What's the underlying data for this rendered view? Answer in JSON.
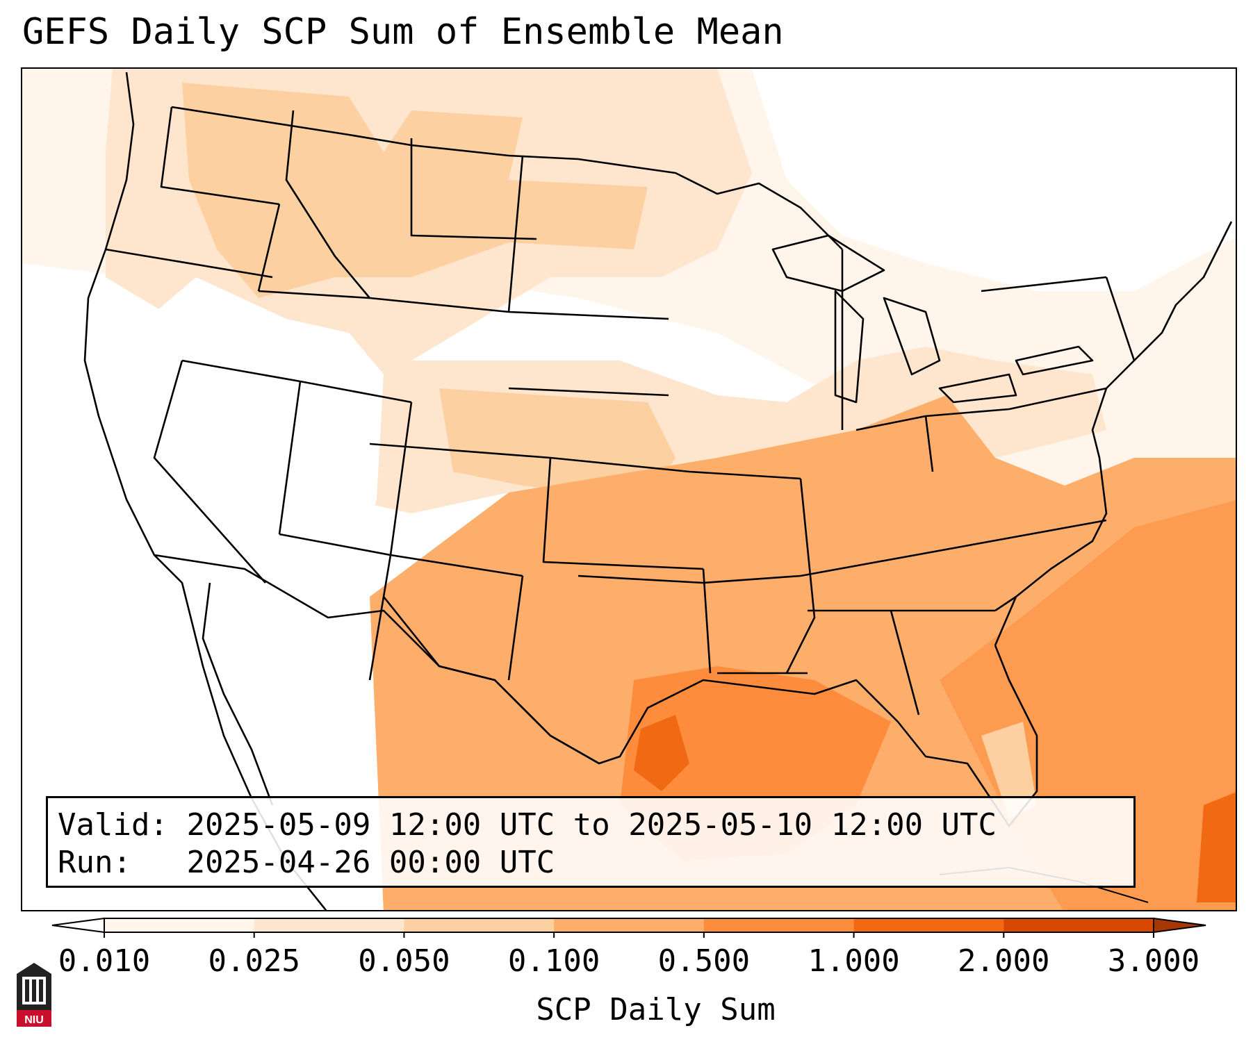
{
  "title": "GEFS Daily SCP Sum of Ensemble Mean",
  "info": {
    "valid_label": "Valid:",
    "valid_value": "2025-05-09 12:00 UTC to 2025-05-10 12:00 UTC",
    "run_label": "Run:",
    "run_value": "2025-04-26 00:00 UTC"
  },
  "colorbar": {
    "label": "SCP Daily Sum",
    "ticks": [
      "0.010",
      "0.025",
      "0.050",
      "0.100",
      "0.500",
      "1.000",
      "2.000",
      "3.000"
    ],
    "colors": [
      "#fff5eb",
      "#fee6ce",
      "#fdd0a2",
      "#fdae6b",
      "#fd8d3c",
      "#f16913",
      "#d94801"
    ],
    "under_color": "#ffffff",
    "over_color": "#a63603"
  },
  "logo": {
    "text": "NIU",
    "icon": "niu-logo-icon",
    "colors": {
      "shield": "#c8102e",
      "building": "#222222"
    }
  },
  "map_icons": {
    "base": "us-state-boundaries-icon"
  }
}
